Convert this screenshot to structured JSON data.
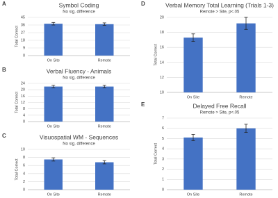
{
  "chart_data": [
    {
      "type": "bar",
      "label": "A",
      "title": "Symbol Coding",
      "subtitle": "No sig. difference",
      "y_label": "Total Correct",
      "categories": [
        "On Site",
        "Remote"
      ],
      "values": [
        37.5,
        37
      ],
      "errors": [
        1.5,
        1.5
      ],
      "color": "#4472c4",
      "ylim": [
        0,
        45
      ],
      "yticks": [
        0,
        9,
        18,
        27,
        36,
        45
      ],
      "grid": true
    },
    {
      "type": "bar",
      "label": "B",
      "title": "Verbal Fluency - Animals",
      "subtitle": "No sig. difference",
      "y_label": "Total Correct",
      "categories": [
        "On Site",
        "Remote"
      ],
      "values": [
        22,
        22
      ],
      "errors": [
        0.8,
        0.8
      ],
      "color": "#4472c4",
      "ylim": [
        0,
        24
      ],
      "yticks": [
        0,
        4,
        8,
        12,
        16,
        20,
        24
      ],
      "grid": true
    },
    {
      "type": "bar",
      "label": "C",
      "title": "Visuospatial WM - Sequences",
      "subtitle": "No sig. difference",
      "y_label": "Total Correct",
      "categories": [
        "On Site",
        "Remote"
      ],
      "values": [
        7.5,
        6.8
      ],
      "errors": [
        0.4,
        0.4
      ],
      "color": "#4472c4",
      "ylim": [
        0,
        10
      ],
      "yticks": [
        0,
        2,
        4,
        6,
        8,
        10
      ],
      "grid": true
    },
    {
      "type": "bar",
      "label": "D",
      "title": "Verbal Memory Total Learning (Trials 1-3)",
      "subtitle": "Remote > Site, p<.05",
      "y_label": "Total Correct",
      "categories": [
        "On Site",
        "Remote"
      ],
      "values": [
        17.3,
        19.2
      ],
      "errors": [
        0.5,
        0.8
      ],
      "color": "#4472c4",
      "ylim": [
        10,
        20
      ],
      "yticks": [
        10,
        12,
        14,
        16,
        18,
        20
      ],
      "grid": true
    },
    {
      "type": "bar",
      "label": "E",
      "title": "Delayed Free Recall",
      "subtitle": "Remote > Site, p<.05",
      "y_label": "Total Correct",
      "categories": [
        "On Site",
        "Remote"
      ],
      "values": [
        5.1,
        6.0
      ],
      "errors": [
        0.3,
        0.4
      ],
      "color": "#4472c4",
      "ylim": [
        0,
        7
      ],
      "yticks": [
        0,
        1,
        2,
        3,
        4,
        5,
        6,
        7
      ],
      "grid": true
    }
  ]
}
